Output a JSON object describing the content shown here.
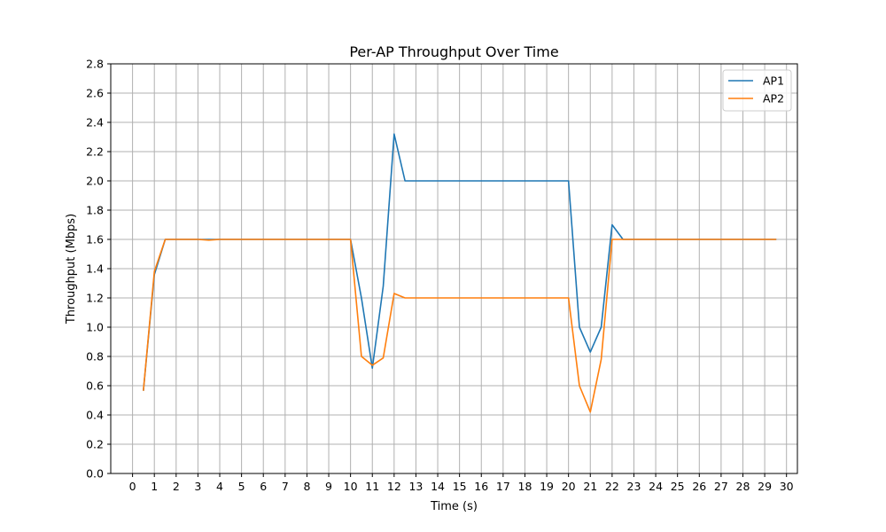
{
  "chart_data": {
    "type": "line",
    "title": "Per-AP Throughput Over Time",
    "xlabel": "Time (s)",
    "ylabel": "Throughput (Mbps)",
    "xlim": [
      -1,
      30.5
    ],
    "ylim": [
      0,
      2.8
    ],
    "x_ticks": [
      0,
      1,
      2,
      3,
      4,
      5,
      6,
      7,
      8,
      9,
      10,
      11,
      12,
      13,
      14,
      15,
      16,
      17,
      18,
      19,
      20,
      21,
      22,
      23,
      24,
      25,
      26,
      27,
      28,
      29,
      30
    ],
    "y_ticks": [
      0,
      0.2,
      0.4,
      0.6,
      0.8,
      1.0,
      1.2,
      1.4,
      1.6,
      1.8,
      2.0,
      2.2,
      2.4,
      2.6,
      2.8
    ],
    "grid": true,
    "legend_position": "top-right",
    "x": [
      0.5,
      1,
      1.5,
      2,
      2.5,
      3,
      3.5,
      4,
      4.5,
      5,
      5.5,
      6,
      6.5,
      7,
      7.5,
      8,
      8.5,
      9,
      9.5,
      10,
      10.5,
      11,
      11.5,
      12,
      12.5,
      13,
      13.5,
      14,
      14.5,
      15,
      15.5,
      16,
      16.5,
      17,
      17.5,
      18,
      18.5,
      19,
      19.5,
      20,
      20.5,
      21,
      21.5,
      22,
      22.5,
      23,
      23.5,
      24,
      24.5,
      25,
      25.5,
      26,
      26.5,
      27,
      27.5,
      28,
      28.5,
      29,
      29.5
    ],
    "series": [
      {
        "name": "AP1",
        "color": "#1f77b4",
        "values": [
          0.57,
          1.36,
          1.6,
          1.6,
          1.6,
          1.6,
          1.6,
          1.6,
          1.6,
          1.6,
          1.6,
          1.6,
          1.6,
          1.6,
          1.6,
          1.6,
          1.6,
          1.6,
          1.6,
          1.6,
          1.2,
          0.72,
          1.28,
          2.32,
          2.0,
          2.0,
          2.0,
          2.0,
          2.0,
          2.0,
          2.0,
          2.0,
          2.0,
          2.0,
          2.0,
          2.0,
          2.0,
          2.0,
          2.0,
          2.0,
          1.0,
          0.83,
          1.0,
          1.7,
          1.6,
          1.6,
          1.6,
          1.6,
          1.6,
          1.6,
          1.6,
          1.6,
          1.6,
          1.6,
          1.6,
          1.6,
          1.6,
          1.6,
          1.6
        ]
      },
      {
        "name": "AP2",
        "color": "#ff7f0e",
        "values": [
          0.57,
          1.38,
          1.6,
          1.6,
          1.6,
          1.6,
          1.595,
          1.6,
          1.6,
          1.6,
          1.6,
          1.6,
          1.6,
          1.6,
          1.6,
          1.6,
          1.6,
          1.6,
          1.6,
          1.6,
          0.8,
          0.74,
          0.79,
          1.23,
          1.2,
          1.2,
          1.2,
          1.2,
          1.2,
          1.2,
          1.2,
          1.2,
          1.2,
          1.2,
          1.2,
          1.2,
          1.2,
          1.2,
          1.2,
          1.2,
          0.6,
          0.42,
          0.78,
          1.6,
          1.6,
          1.6,
          1.6,
          1.6,
          1.6,
          1.6,
          1.6,
          1.6,
          1.6,
          1.6,
          1.6,
          1.6,
          1.6,
          1.6,
          1.6
        ]
      }
    ]
  }
}
